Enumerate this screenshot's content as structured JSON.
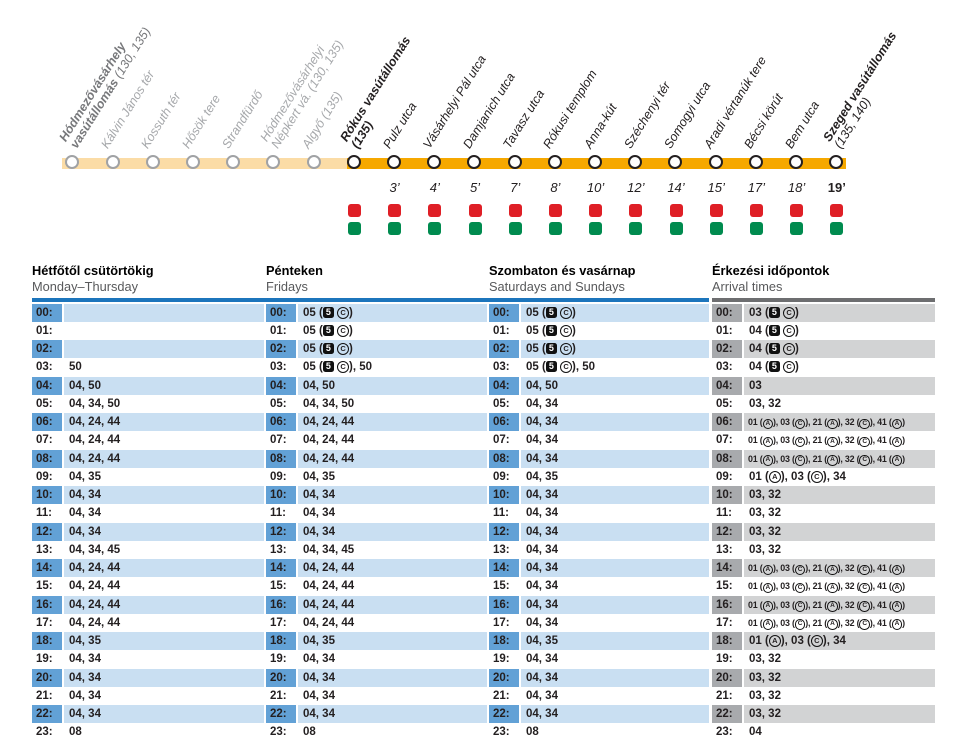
{
  "colors": {
    "line_active": "#F6A800",
    "line_past": "#FBDCA6",
    "red_mark": "#DF1F26",
    "green_mark": "#008B4F",
    "blue_rule": "#1C75BC",
    "blue_chip": "#62A1D6",
    "blue_row": "#C9DFF2",
    "gray_rule": "#6D6E70",
    "gray_chip": "#A8AAAD",
    "gray_row": "#D2D3D4"
  },
  "symbols": {
    "boxed5": "5",
    "circledC": "C",
    "circledA": "A"
  },
  "route": {
    "stops": [
      {
        "label": [
          [
            {
              "t": "Hódmezővásárhely",
              "b": true
            }
          ],
          [
            {
              "t": "vasútállomás ",
              "b": true
            },
            {
              "t": "(130, 135)",
              "b": false
            }
          ]
        ],
        "state": "past-terminal",
        "time": null,
        "marks": false
      },
      {
        "label": [
          [
            {
              "t": "Kálvin János tér",
              "b": false
            }
          ]
        ],
        "state": "past",
        "time": null,
        "marks": false
      },
      {
        "label": [
          [
            {
              "t": "Kossuth tér",
              "b": false
            }
          ]
        ],
        "state": "past",
        "time": null,
        "marks": false
      },
      {
        "label": [
          [
            {
              "t": "Hősök tere",
              "b": false
            }
          ]
        ],
        "state": "past",
        "time": null,
        "marks": false
      },
      {
        "label": [
          [
            {
              "t": "Strandfürdő",
              "b": false
            }
          ]
        ],
        "state": "past",
        "time": null,
        "marks": false
      },
      {
        "label": [
          [
            {
              "t": "Hódmezővásárhelyi",
              "b": false
            }
          ],
          [
            {
              "t": "Népkert vá. (130, 135)",
              "b": false
            }
          ]
        ],
        "state": "past",
        "time": null,
        "marks": false
      },
      {
        "label": [
          [
            {
              "t": "Algyő (135)",
              "b": false
            }
          ]
        ],
        "state": "past",
        "time": null,
        "marks": false
      },
      {
        "label": [
          [
            {
              "t": "Rókus vasútállomás",
              "b": true
            }
          ],
          [
            {
              "t": "(135)",
              "b": true
            }
          ]
        ],
        "state": "terminal",
        "time": null,
        "marks": true
      },
      {
        "label": [
          [
            {
              "t": "Pulz utca",
              "b": false
            }
          ]
        ],
        "state": "active",
        "time": "3’",
        "marks": true
      },
      {
        "label": [
          [
            {
              "t": "Vásárhelyi Pál utca",
              "b": false
            }
          ]
        ],
        "state": "active",
        "time": "4’",
        "marks": true
      },
      {
        "label": [
          [
            {
              "t": "Damjanich utca",
              "b": false
            }
          ]
        ],
        "state": "active",
        "time": "5’",
        "marks": true
      },
      {
        "label": [
          [
            {
              "t": "Tavasz utca",
              "b": false
            }
          ]
        ],
        "state": "active",
        "time": "7’",
        "marks": true
      },
      {
        "label": [
          [
            {
              "t": "Rókusi templom",
              "b": false
            }
          ]
        ],
        "state": "active",
        "time": "8’",
        "marks": true
      },
      {
        "label": [
          [
            {
              "t": "Anna-kút",
              "b": false
            }
          ]
        ],
        "state": "active",
        "time": "10’",
        "marks": true
      },
      {
        "label": [
          [
            {
              "t": "Széchenyi tér",
              "b": false
            }
          ]
        ],
        "state": "active",
        "time": "12’",
        "marks": true
      },
      {
        "label": [
          [
            {
              "t": "Somogyi utca",
              "b": false
            }
          ]
        ],
        "state": "active",
        "time": "14’",
        "marks": true
      },
      {
        "label": [
          [
            {
              "t": "Aradi vértanúk tere",
              "b": false
            }
          ]
        ],
        "state": "active",
        "time": "15’",
        "marks": true
      },
      {
        "label": [
          [
            {
              "t": "Bécsi körút",
              "b": false
            }
          ]
        ],
        "state": "active",
        "time": "17’",
        "marks": true
      },
      {
        "label": [
          [
            {
              "t": "Bem utca",
              "b": false
            }
          ]
        ],
        "state": "active",
        "time": "18’",
        "marks": true
      },
      {
        "label": [
          [
            {
              "t": "Szeged vasútállomás",
              "b": true
            }
          ],
          [
            {
              "t": "(135, 140)",
              "b": false
            }
          ]
        ],
        "state": "terminal",
        "time": "19’",
        "time_bold": true,
        "marks": true
      }
    ]
  },
  "timetable": {
    "hours": [
      "00:",
      "01:",
      "02:",
      "03:",
      "04:",
      "05:",
      "06:",
      "07:",
      "08:",
      "09:",
      "10:",
      "11:",
      "12:",
      "13:",
      "14:",
      "15:",
      "16:",
      "17:",
      "18:",
      "19:",
      "20:",
      "21:",
      "22:",
      "23:"
    ],
    "columns": [
      {
        "title_hu": "Hétfőtől csütörtökig",
        "title_en": "Monday–Thursday",
        "theme": "blue",
        "minutes": [
          "",
          "",
          "",
          "50",
          "04, 50",
          "04, 34, 50",
          "04, 24, 44",
          "04, 24, 44",
          "04, 24, 44",
          "04, 35",
          "04, 34",
          "04, 34",
          "04, 34",
          "04, 34, 45",
          "04, 24, 44",
          "04, 24, 44",
          "04, 24, 44",
          "04, 24, 44",
          "04, 35",
          "04, 34",
          "04, 34",
          "04, 34",
          "04, 34",
          "08"
        ]
      },
      {
        "title_hu": "Pénteken",
        "title_en": "Fridays",
        "theme": "blue",
        "minutes": [
          "05 ([5] [C])",
          "05 ([5] [C])",
          "05 ([5] [C])",
          "05 ([5] [C]), 50",
          "04, 50",
          "04, 34, 50",
          "04, 24, 44",
          "04, 24, 44",
          "04, 24, 44",
          "04, 35",
          "04, 34",
          "04, 34",
          "04, 34",
          "04, 34, 45",
          "04, 24, 44",
          "04, 24, 44",
          "04, 24, 44",
          "04, 24, 44",
          "04, 35",
          "04, 34",
          "04, 34",
          "04, 34",
          "04, 34",
          "08"
        ]
      },
      {
        "title_hu": "Szombaton és vasárnap",
        "title_en": "Saturdays and Sundays",
        "theme": "blue",
        "minutes": [
          "05 ([5] [C])",
          "05 ([5] [C])",
          "05 ([5] [C])",
          "05 ([5] [C]), 50",
          "04, 50",
          "04, 34",
          "04, 34",
          "04, 34",
          "04, 34",
          "04, 35",
          "04, 34",
          "04, 34",
          "04, 34",
          "04, 34",
          "04, 34",
          "04, 34",
          "04, 34",
          "04, 34",
          "04, 35",
          "04, 34",
          "04, 34",
          "04, 34",
          "04, 34",
          "08"
        ]
      },
      {
        "title_hu": "Érkezési időpontok",
        "title_en": "Arrival times",
        "theme": "gray",
        "minutes": [
          "03 ([5] [C])",
          "04 ([5] [C])",
          "04 ([5] [C])",
          "04 ([5] [C])",
          "03",
          "03, 32",
          "01 ([A]), 03 ([C]), 21 ([A]), 32 ([C]), 41 ([A])",
          "01 ([A]), 03 ([C]), 21 ([A]), 32 ([C]), 41 ([A])",
          "01 ([A]), 03 ([C]), 21 ([A]), 32 ([C]), 41 ([A])",
          "01 ([A]), 03 ([C]), 34",
          "03, 32",
          "03, 32",
          "03, 32",
          "03, 32",
          "01 ([A]), 03 ([C]), 21 ([A]), 32 ([C]), 41 ([A])",
          "01 ([A]), 03 ([C]), 21 ([A]), 32 ([C]), 41 ([A])",
          "01 ([A]), 03 ([C]), 21 ([A]), 32 ([C]), 41 ([A])",
          "01 ([A]), 03 ([C]), 21 ([A]), 32 ([C]), 41 ([A])",
          "01 ([A]), 03 ([C]), 34",
          "03, 32",
          "03, 32",
          "03, 32",
          "03, 32",
          "04"
        ]
      }
    ]
  }
}
